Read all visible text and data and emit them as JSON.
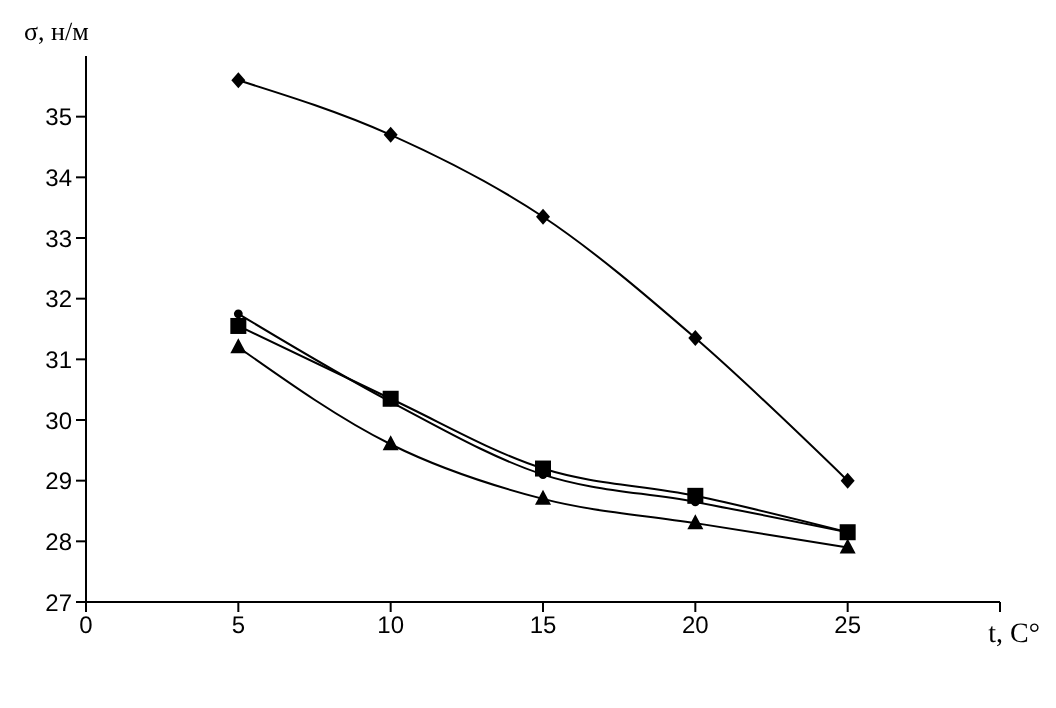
{
  "chart_data": {
    "type": "line",
    "xlabel": "t, C°",
    "ylabel": "σ, н/м",
    "x": [
      5,
      10,
      15,
      20,
      25
    ],
    "xlim": [
      0,
      30
    ],
    "xticks": [
      0,
      5,
      10,
      15,
      20,
      25,
      {
        "value": 30,
        "label": null
      }
    ],
    "ylim": [
      27,
      36
    ],
    "yticks": [
      27,
      28,
      29,
      30,
      31,
      32,
      33,
      34,
      35
    ],
    "grid": false,
    "legend": false,
    "series": [
      {
        "color": "#000000",
        "marker": "diamond",
        "values": [
          35.6,
          34.7,
          33.35,
          31.35,
          29.0
        ]
      },
      {
        "color": "#000000",
        "marker": "square",
        "values": [
          31.55,
          30.35,
          29.2,
          28.75,
          28.15
        ]
      },
      {
        "color": "#000000",
        "marker": "circle",
        "values": [
          31.75,
          30.3,
          29.1,
          28.65,
          28.15
        ]
      },
      {
        "color": "#000000",
        "marker": "triangle",
        "values": [
          31.2,
          29.6,
          28.7,
          28.3,
          27.9
        ]
      }
    ]
  }
}
